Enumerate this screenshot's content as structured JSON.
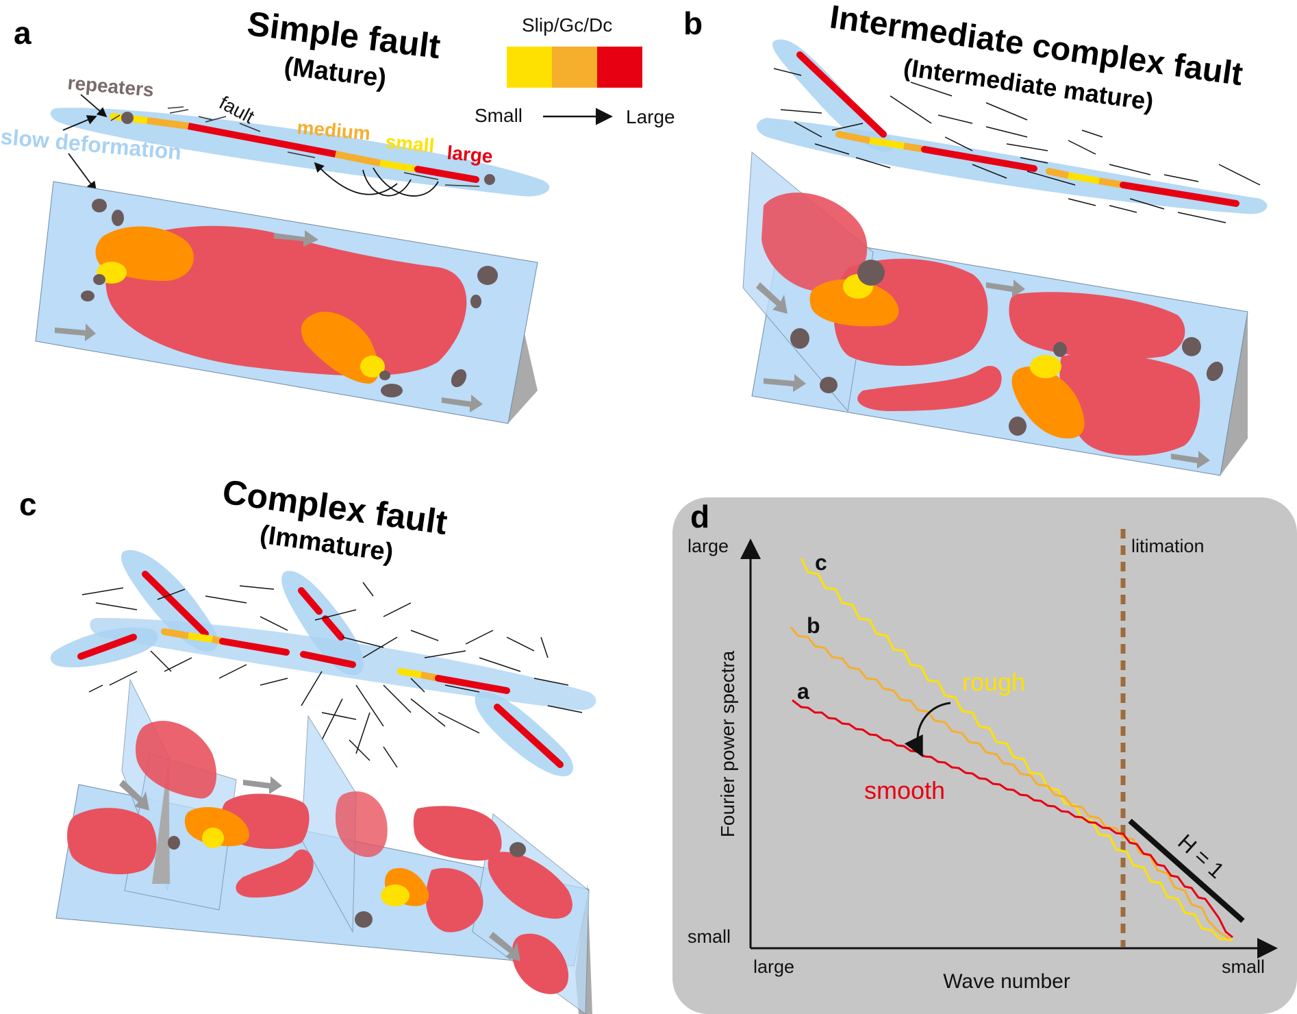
{
  "panel_a": {
    "letter": "a",
    "title": "Simple fault",
    "subtitle": "(Mature)",
    "labels": {
      "repeaters": "repeaters",
      "fault": "fault",
      "slow_deformation": "slow deformation",
      "medium": "medium",
      "small": "small",
      "large": "large"
    }
  },
  "legend": {
    "title": "Slip/Gc/Dc",
    "from": "Small",
    "to": "Large",
    "colors": [
      "#ffe100",
      "#f6ae2d",
      "#e60012"
    ]
  },
  "panel_b": {
    "letter": "b",
    "title": "Intermediate complex fault",
    "subtitle": "(Intermediate mature)"
  },
  "panel_c": {
    "letter": "c",
    "title": "Complex fault",
    "subtitle": "(Immature)"
  },
  "panel_d": {
    "letter": "d",
    "y_axis": "Fourier power spectra",
    "x_axis": "Wave number",
    "y_top": "large",
    "y_bottom": "small",
    "x_left": "large",
    "x_right": "small",
    "limit_label": "litimation",
    "curve_c": "c",
    "curve_b": "b",
    "curve_a": "a",
    "rough": "rough",
    "smooth": "smooth",
    "slope_label": "H = 1"
  },
  "colors": {
    "large_slip": "#e60012",
    "medium_slip": "#f6ae2d",
    "small_slip": "#ffe100",
    "patch_red": "#e8525e",
    "patch_orange": "#ff9000",
    "fault_plane": "#bcdcf8",
    "slow_halo": "#a9d2f2",
    "repeater": "#6b5a5a",
    "panel_d_bg": "#c6c6c6",
    "limit_line": "#9e6b3a",
    "rough_color": "#ffe100",
    "smooth_color": "#e60012"
  }
}
